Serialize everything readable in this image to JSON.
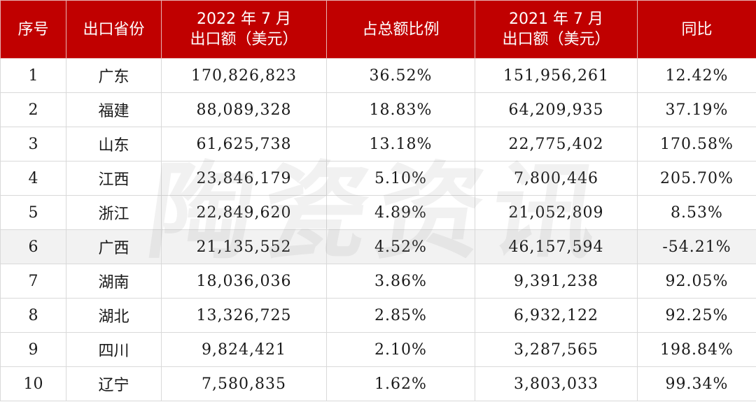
{
  "header": {
    "rank": "序号",
    "province": "出口省份",
    "export_2022_line1": "2022 年 7 月",
    "export_2022_line2": "出口额（美元）",
    "share": "占总额比例",
    "export_2021_line1": "2021 年 7 月",
    "export_2021_line2": "出口额（美元）",
    "yoy": "同比"
  },
  "rows": [
    {
      "rank": "1",
      "province": "广东",
      "export_2022": "170,826,823",
      "share": "36.52%",
      "export_2021": "151,956,261",
      "yoy": "12.42%"
    },
    {
      "rank": "2",
      "province": "福建",
      "export_2022": "88,089,328",
      "share": "18.83%",
      "export_2021": "64,209,935",
      "yoy": "37.19%"
    },
    {
      "rank": "3",
      "province": "山东",
      "export_2022": "61,625,738",
      "share": "13.18%",
      "export_2021": "22,775,402",
      "yoy": "170.58%"
    },
    {
      "rank": "4",
      "province": "江西",
      "export_2022": "23,846,179",
      "share": "5.10%",
      "export_2021": "7,800,446",
      "yoy": "205.70%"
    },
    {
      "rank": "5",
      "province": "浙江",
      "export_2022": "22,849,620",
      "share": "4.89%",
      "export_2021": "21,052,809",
      "yoy": "8.53%"
    },
    {
      "rank": "6",
      "province": "广西",
      "export_2022": "21,135,552",
      "share": "4.52%",
      "export_2021": "46,157,594",
      "yoy": "-54.21%"
    },
    {
      "rank": "7",
      "province": "湖南",
      "export_2022": "18,036,036",
      "share": "3.86%",
      "export_2021": "9,391,238",
      "yoy": "92.05%"
    },
    {
      "rank": "8",
      "province": "湖北",
      "export_2022": "13,326,725",
      "share": "2.85%",
      "export_2021": "6,932,122",
      "yoy": "92.25%"
    },
    {
      "rank": "9",
      "province": "四川",
      "export_2022": "9,824,421",
      "share": "2.10%",
      "export_2021": "3,287,565",
      "yoy": "198.84%"
    },
    {
      "rank": "10",
      "province": "辽宁",
      "export_2022": "7,580,835",
      "share": "1.62%",
      "export_2021": "3,803,033",
      "yoy": "99.34%"
    }
  ],
  "watermark": {
    "char1": "陶",
    "char2": "瓷",
    "char3": "资",
    "char4": "讯"
  },
  "colors": {
    "header_bg": "#c00000",
    "header_text": "#ffffff",
    "highlight_row_bg": "#f2f2f2"
  }
}
